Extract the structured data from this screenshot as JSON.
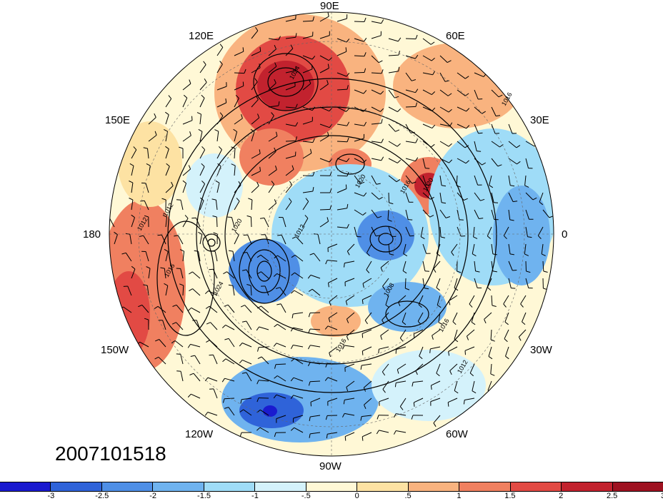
{
  "timestamp": "2007101518",
  "projection": "north-polar-stereographic",
  "longitude_labels": [
    "90E",
    "60E",
    "30E",
    "0",
    "30W",
    "60W",
    "90W",
    "120W",
    "150W",
    "180",
    "150E",
    "120E"
  ],
  "contour_labels": [
    "1024",
    "1020",
    "1016",
    "1012",
    "1008",
    "1016",
    "1012",
    "1016",
    "1020",
    "1024",
    "1016",
    "1012",
    "1020",
    "1016",
    "1012"
  ],
  "colorbar": {
    "colors": [
      "#1a1acf",
      "#2f63d9",
      "#4f8fe6",
      "#6fb3ef",
      "#9fdcf7",
      "#d4f2fb",
      "#fff8d6",
      "#fde2a3",
      "#f9b37f",
      "#f08060",
      "#e24a44",
      "#c2222e",
      "#9e1120"
    ],
    "ticks": [
      "-3",
      "-2.5",
      "-2",
      "-1.5",
      "-1",
      "-.5",
      "0",
      ".5",
      "1",
      "1.5",
      "2",
      "2.5",
      "3"
    ]
  }
}
